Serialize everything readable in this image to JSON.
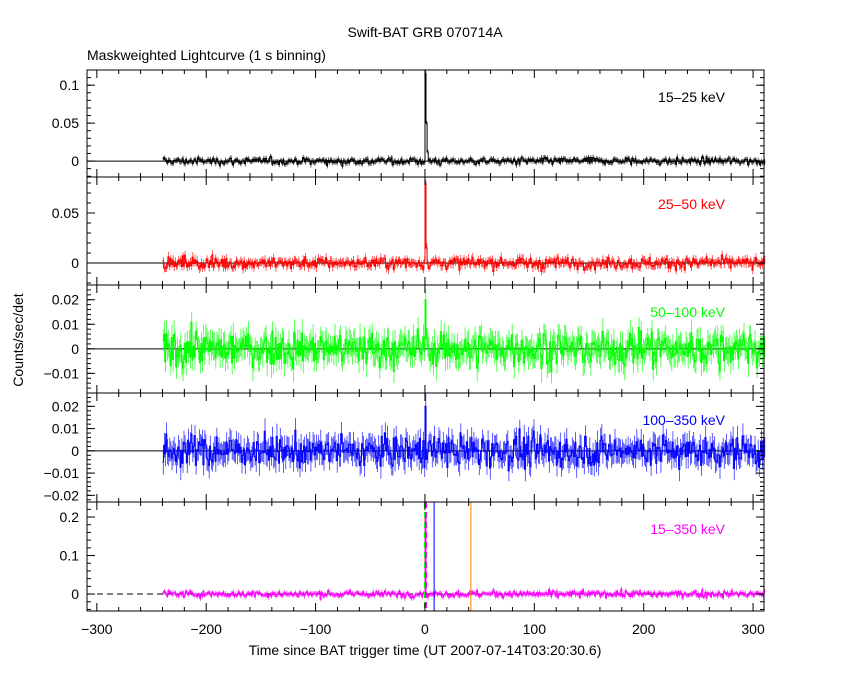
{
  "chart_data": {
    "type": "line",
    "title": "Swift-BAT GRB 070714A",
    "subtitle": "Maskweighted Lightcurve (1 s binning)",
    "xlabel": "Time since BAT trigger time (UT 2007-07-14T03:20:30.6)",
    "ylabel": "Counts/sec/det",
    "xlim": [
      -309,
      310
    ],
    "xticks": [
      -300,
      -200,
      -100,
      0,
      100,
      200,
      300
    ],
    "xtick_labels": [
      "−300",
      "−200",
      "−100",
      "0",
      "100",
      "200",
      "300"
    ],
    "data_start": -240,
    "binning_s": 1,
    "panels": [
      {
        "name": "15-25 keV",
        "label": "15–25 keV",
        "color": "#000000",
        "ylim": [
          -0.021,
          0.12
        ],
        "yticks": [
          0,
          0.05,
          0.1
        ],
        "ytick_labels": [
          "0",
          "0.05",
          "0.1"
        ],
        "noise": 0.0045,
        "peak": [
          [
            0,
            0.115
          ],
          [
            1,
            0.05
          ],
          [
            2,
            0.012
          ]
        ]
      },
      {
        "name": "25-50 keV",
        "label": "25–50 keV",
        "color": "#ff0000",
        "ylim": [
          -0.022,
          0.086
        ],
        "yticks": [
          0,
          0.05
        ],
        "ytick_labels": [
          "0",
          "0.05"
        ],
        "noise": 0.0055,
        "peak": [
          [
            0,
            0.08
          ],
          [
            1,
            0.015
          ]
        ]
      },
      {
        "name": "50-100 keV",
        "label": "50–100 keV",
        "color": "#00ff00",
        "ylim": [
          -0.018,
          0.026
        ],
        "yticks": [
          -0.01,
          0,
          0.01,
          0.02
        ],
        "ytick_labels": [
          "−0.01",
          "0",
          "0.01",
          "0.02"
        ],
        "noise": 0.0065,
        "peak": [
          [
            0,
            0.02
          ]
        ]
      },
      {
        "name": "100-350 keV",
        "label": "100–350 keV",
        "color": "#0000ff",
        "ylim": [
          -0.023,
          0.026
        ],
        "yticks": [
          -0.02,
          -0.01,
          0,
          0.01,
          0.02
        ],
        "ytick_labels": [
          "−0.02",
          "−0.01",
          "0",
          "0.01",
          "0.02"
        ],
        "noise": 0.0065,
        "peak": [
          [
            0,
            0.02
          ]
        ]
      },
      {
        "name": "15-350 keV",
        "label": "15–350 keV",
        "color": "#ff00ff",
        "ylim": [
          -0.044,
          0.239
        ],
        "yticks": [
          0,
          0.1,
          0.2
        ],
        "ytick_labels": [
          "0",
          "0.1",
          "0.2"
        ],
        "noise": 0.008,
        "peak": [
          [
            0,
            0.2
          ]
        ],
        "markers": [
          {
            "t": 0,
            "color": "#00ff00",
            "style": "dashed"
          },
          {
            "t": 1,
            "color": "#ff00ff",
            "style": "dashed"
          },
          {
            "t": 8.4,
            "color": "#0000ff",
            "style": "solid"
          },
          {
            "t": 42,
            "color": "#ff8000",
            "style": "solid"
          }
        ]
      }
    ]
  }
}
